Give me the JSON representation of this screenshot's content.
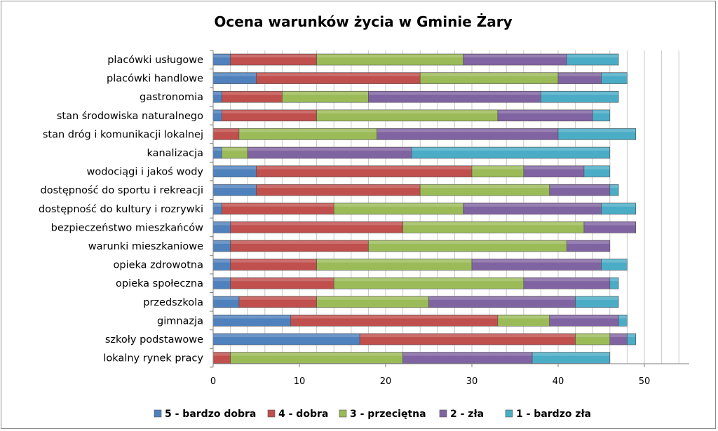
{
  "chart_data": {
    "type": "bar",
    "orientation": "horizontal",
    "stacked": true,
    "title": "Ocena warunków życia w Gminie Żary",
    "categories": [
      "placówki usługowe",
      "placówki handlowe",
      "gastronomia",
      "stan środowiska naturalnego",
      "stan dróg i komunikacji lokalnej",
      "kanalizacja",
      "wodociągi i jakoś wody",
      "dostępność do sportu i rekreacji",
      "dostępność do kultury i rozrywki",
      "bezpieczeństwo mieszkańców",
      "warunki mieszkaniowe",
      "opieka zdrowotna",
      "opieka społeczna",
      "przedszkola",
      "gimnazja",
      "szkoły podstawowe",
      "lokalny rynek pracy"
    ],
    "series": [
      {
        "name": "5 - bardzo dobra",
        "color": "#4F81BD",
        "values": [
          2,
          5,
          1,
          1,
          0,
          1,
          5,
          5,
          1,
          2,
          2,
          2,
          2,
          3,
          9,
          17,
          0
        ]
      },
      {
        "name": "4 - dobra",
        "color": "#C0504D",
        "values": [
          10,
          19,
          7,
          11,
          3,
          0,
          25,
          19,
          13,
          20,
          16,
          10,
          12,
          9,
          24,
          25,
          2
        ]
      },
      {
        "name": "3 - przeciętna",
        "color": "#9BBB59",
        "values": [
          17,
          16,
          10,
          21,
          16,
          3,
          6,
          15,
          15,
          21,
          23,
          18,
          22,
          13,
          6,
          4,
          20
        ]
      },
      {
        "name": "2 - zła",
        "color": "#8064A2",
        "values": [
          12,
          5,
          20,
          11,
          21,
          19,
          7,
          7,
          16,
          6,
          5,
          15,
          10,
          17,
          8,
          2,
          15
        ]
      },
      {
        "name": "1 - bardzo zła",
        "color": "#4BACC6",
        "values": [
          6,
          3,
          9,
          2,
          9,
          23,
          3,
          1,
          4,
          0,
          0,
          3,
          1,
          5,
          1,
          1,
          9
        ]
      }
    ],
    "xlim": [
      0,
      55
    ],
    "xticks": [
      0,
      10,
      20,
      30,
      40,
      50
    ],
    "grid": "vertical",
    "legend_position": "bottom"
  }
}
